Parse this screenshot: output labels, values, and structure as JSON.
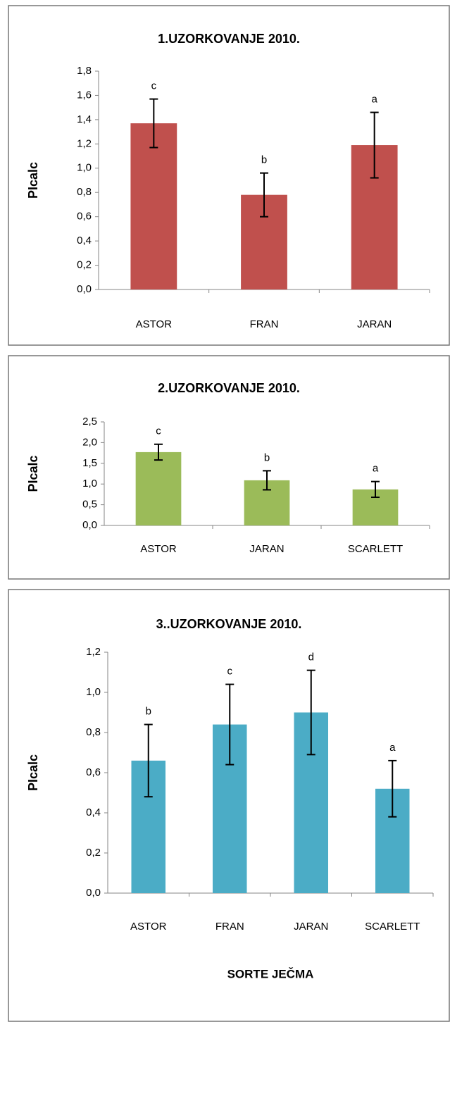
{
  "chart_data": [
    {
      "type": "bar",
      "title": "1.UZORKOVANJE 2010.",
      "y_label": "PIcalc",
      "color": "#c0504d",
      "categories": [
        "ASTOR",
        "FRAN",
        "JARAN"
      ],
      "values": [
        1.37,
        0.78,
        1.19
      ],
      "errors": [
        0.2,
        0.18,
        0.27
      ],
      "annotations": [
        "c",
        "b",
        "a"
      ],
      "ylim": [
        0,
        1.8
      ],
      "yticks": [
        {
          "value": 0,
          "label": "0,0"
        },
        {
          "value": 0.2,
          "label": "0,2"
        },
        {
          "value": 0.4,
          "label": "0,4"
        },
        {
          "value": 0.6,
          "label": "0,6"
        },
        {
          "value": 0.8,
          "label": "0,8"
        },
        {
          "value": 1.0,
          "label": "1,0"
        },
        {
          "value": 1.2,
          "label": "1,2"
        },
        {
          "value": 1.4,
          "label": "1,4"
        },
        {
          "value": 1.6,
          "label": "1,6"
        },
        {
          "value": 1.8,
          "label": "1,8"
        }
      ]
    },
    {
      "type": "bar",
      "title": "2.UZORKOVANJE 2010.",
      "y_label": "PIcalc",
      "color": "#9bbb59",
      "categories": [
        "ASTOR",
        "JARAN",
        "SCARLETT"
      ],
      "values": [
        1.77,
        1.09,
        0.87
      ],
      "errors": [
        0.19,
        0.23,
        0.19
      ],
      "annotations": [
        "c",
        "b",
        "a"
      ],
      "ylim": [
        0,
        2.5
      ],
      "yticks": [
        {
          "value": 0,
          "label": "0,0"
        },
        {
          "value": 0.5,
          "label": "0,5"
        },
        {
          "value": 1.0,
          "label": "1,0"
        },
        {
          "value": 1.5,
          "label": "1,5"
        },
        {
          "value": 2.0,
          "label": "2,0"
        },
        {
          "value": 2.5,
          "label": "2,5"
        }
      ]
    },
    {
      "type": "bar",
      "title": "3..UZORKOVANJE 2010.",
      "y_label": "PIcalc",
      "x_label": "SORTE JEČMA",
      "color": "#4bacc6",
      "categories": [
        "ASTOR",
        "FRAN",
        "JARAN",
        "SCARLETT"
      ],
      "values": [
        0.66,
        0.84,
        0.9,
        0.52
      ],
      "errors": [
        0.18,
        0.2,
        0.21,
        0.14
      ],
      "annotations": [
        "b",
        "c",
        "d",
        "a"
      ],
      "ylim": [
        0,
        1.2
      ],
      "yticks": [
        {
          "value": 0,
          "label": "0,0"
        },
        {
          "value": 0.2,
          "label": "0,2"
        },
        {
          "value": 0.4,
          "label": "0,4"
        },
        {
          "value": 0.6,
          "label": "0,6"
        },
        {
          "value": 0.8,
          "label": "0,8"
        },
        {
          "value": 1.0,
          "label": "1,0"
        },
        {
          "value": 1.2,
          "label": "1,2"
        }
      ]
    }
  ]
}
